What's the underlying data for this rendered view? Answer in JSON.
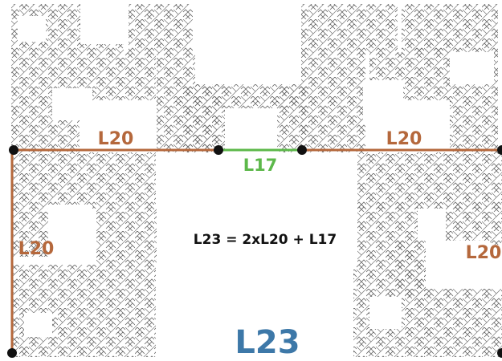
{
  "labels": {
    "top_left": "L20",
    "top_right": "L20",
    "middle": "L17",
    "left_vertical": "L20",
    "right_vertical": "L20",
    "equation": "L23 = 2xL20 + L17",
    "big_title": "L23"
  },
  "colors": {
    "brown": "#b5683c",
    "green": "#5cb84a",
    "blue": "#3d78a8",
    "black": "#111111",
    "fractal": "#444444"
  }
}
